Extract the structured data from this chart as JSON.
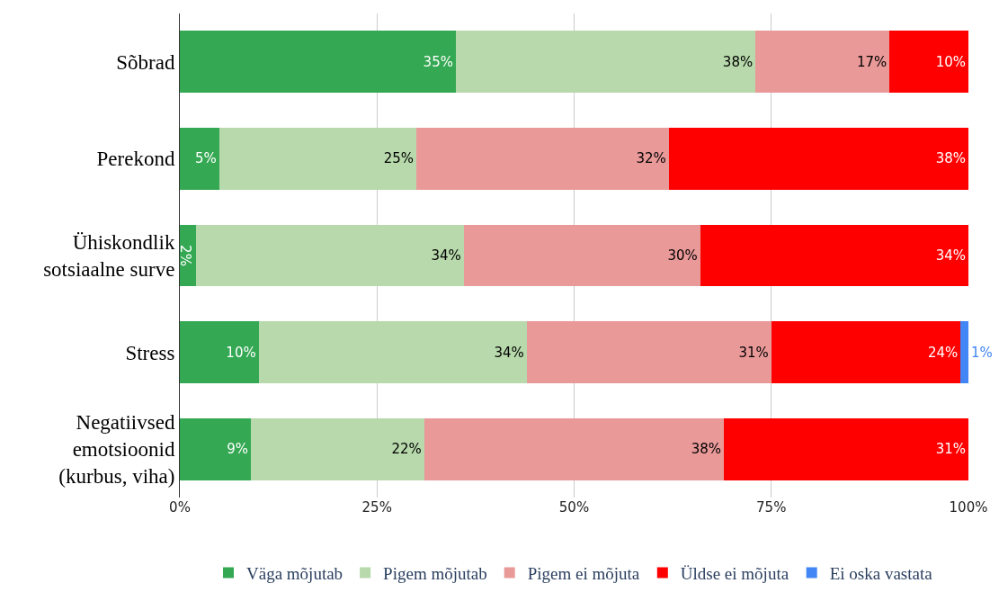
{
  "chart_data": {
    "type": "bar",
    "orientation": "horizontal",
    "stacked": true,
    "categories": [
      "Sõbrad",
      "Perekond",
      "Ühiskondlik\nsotsiaalne surve",
      "Stress",
      "Negatiivsed\nemotsioonid\n(kurbus, viha)"
    ],
    "series": [
      {
        "name": "Väga mõjutab",
        "color": "#34a853",
        "values": [
          35,
          5,
          2,
          10,
          9
        ],
        "value_labels": [
          "35%",
          "5%",
          "2%",
          "10%",
          "9%"
        ]
      },
      {
        "name": "Pigem mõjutab",
        "color": "#b7d9ab",
        "values": [
          38,
          25,
          34,
          34,
          22
        ],
        "value_labels": [
          "38%",
          "25%",
          "34%",
          "34%",
          "22%"
        ]
      },
      {
        "name": "Pigem ei mõjuta",
        "color": "#ea9999",
        "values": [
          17,
          32,
          30,
          31,
          38
        ],
        "value_labels": [
          "17%",
          "32%",
          "30%",
          "31%",
          "38%"
        ]
      },
      {
        "name": "Üldse ei mõjuta",
        "color": "#ff0000",
        "values": [
          10,
          38,
          34,
          24,
          31
        ],
        "value_labels": [
          "10%",
          "38%",
          "34%",
          "24%",
          "31%"
        ]
      },
      {
        "name": "Ei oska vastata",
        "color": "#4285f4",
        "values": [
          null,
          null,
          null,
          1,
          null
        ],
        "value_labels": [
          null,
          null,
          null,
          "1%",
          null
        ]
      }
    ],
    "xlim": [
      0,
      100
    ],
    "xticks": [
      {
        "value": 0,
        "label": "0%"
      },
      {
        "value": 25,
        "label": "25%"
      },
      {
        "value": 50,
        "label": "50%"
      },
      {
        "value": 75,
        "label": "75%"
      },
      {
        "value": 100,
        "label": "100%"
      }
    ],
    "grid": "x",
    "legend": "bottom"
  }
}
